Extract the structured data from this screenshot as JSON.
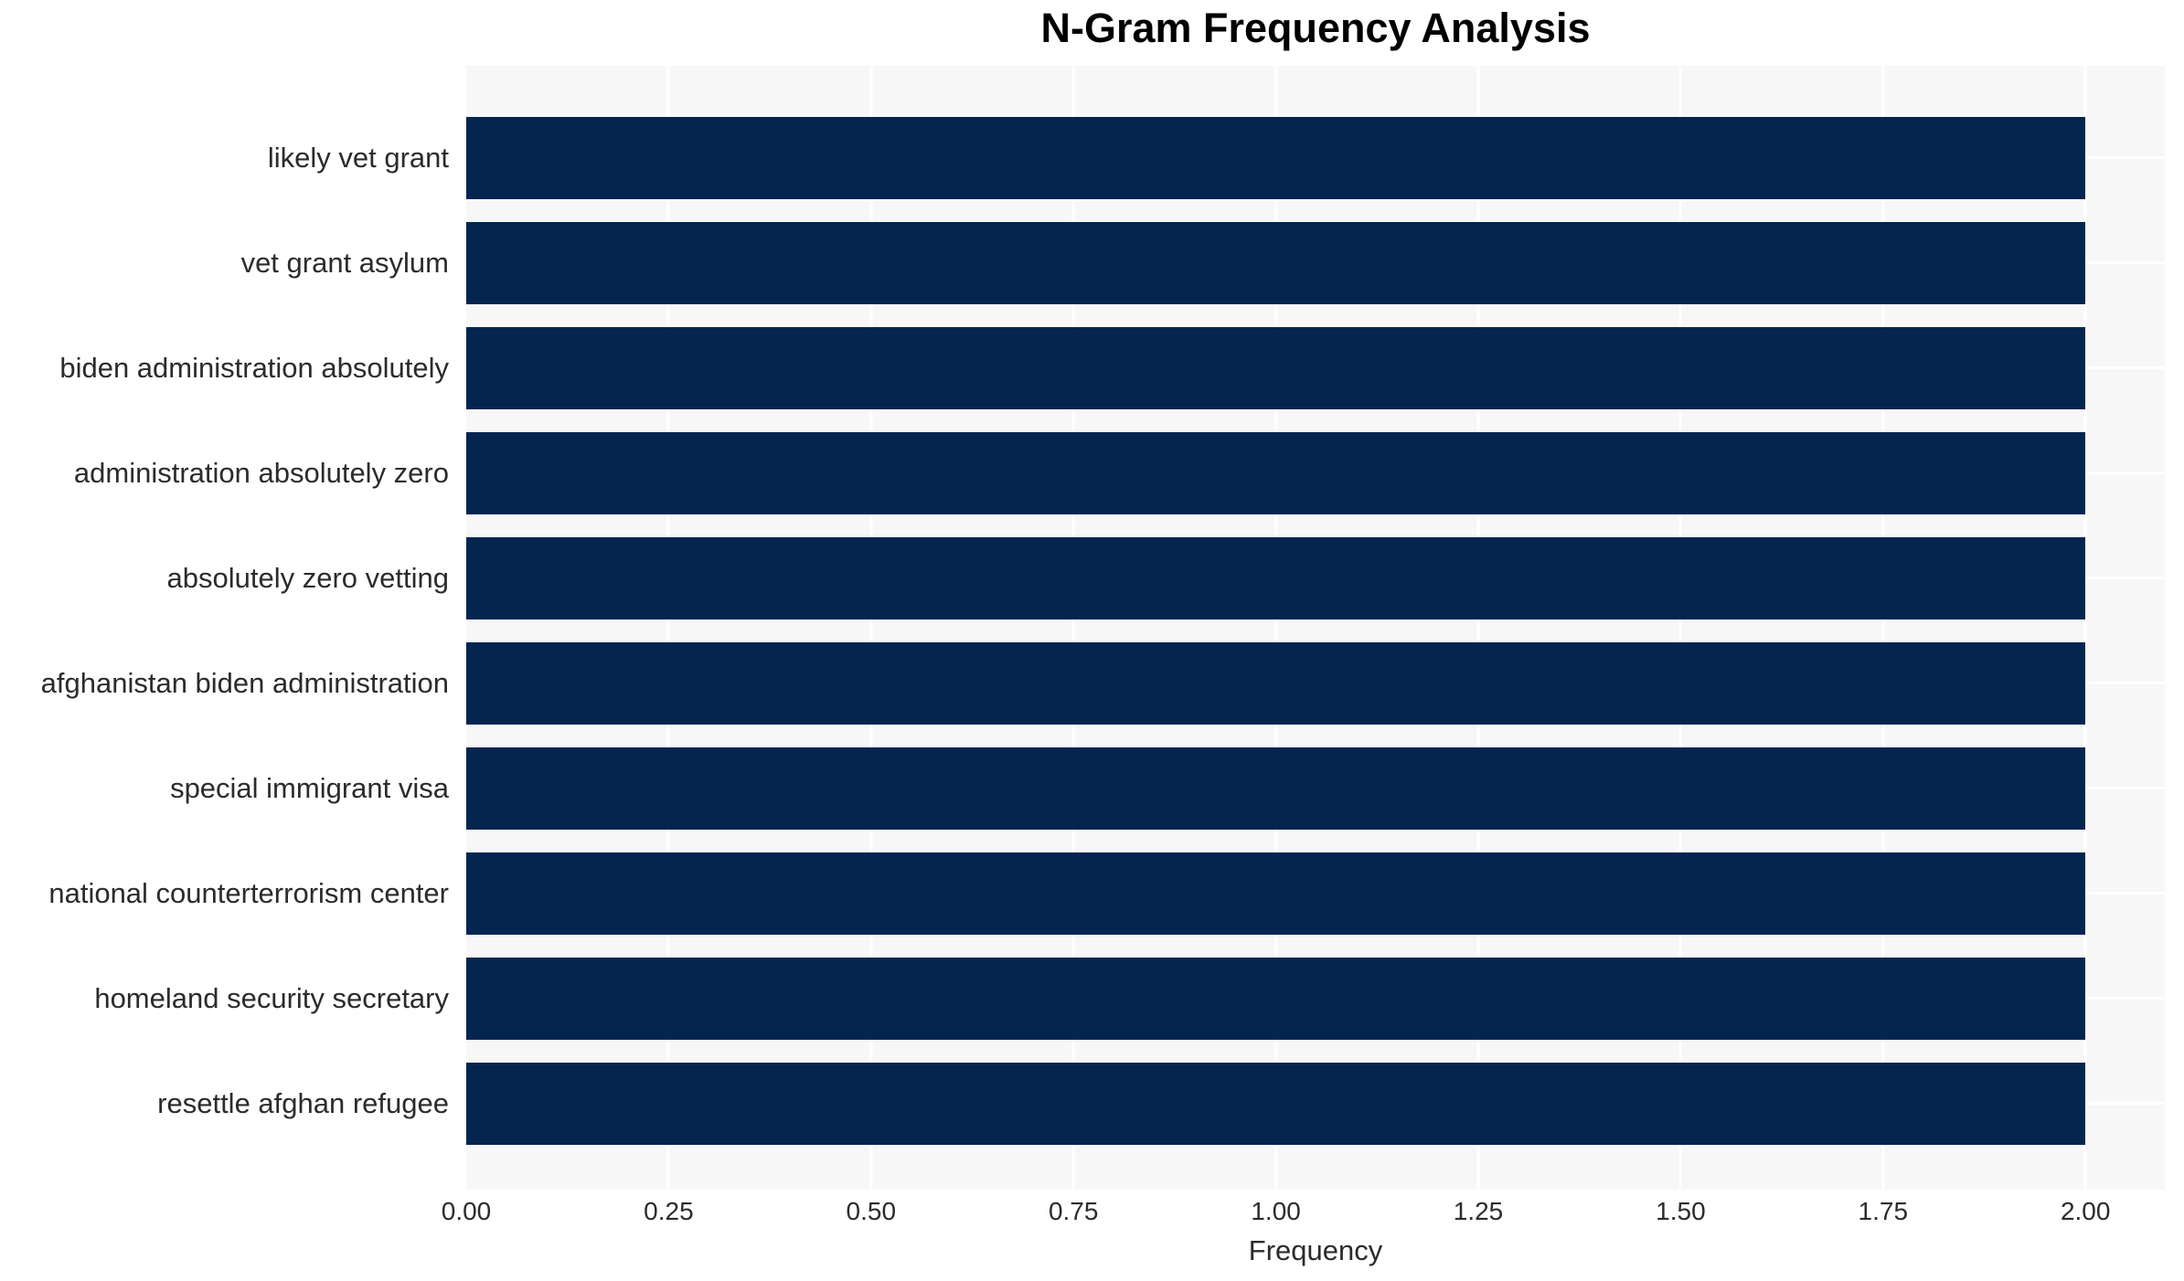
{
  "title": "N-Gram Frequency Analysis",
  "axes": {
    "xlabel": "Frequency",
    "x_ticks": [
      "0.00",
      "0.25",
      "0.50",
      "0.75",
      "1.00",
      "1.25",
      "1.50",
      "1.75",
      "2.00"
    ]
  },
  "colors": {
    "bar": "#032550",
    "plot_background": "#f7f7f7",
    "gridline": "#ffffff",
    "tick_text": "#2b2b2b",
    "title_text": "#000000"
  },
  "chart_data": {
    "type": "bar",
    "orientation": "horizontal",
    "title": "N-Gram Frequency Analysis",
    "xlabel": "Frequency",
    "ylabel": "",
    "categories": [
      "likely vet grant",
      "vet grant asylum",
      "biden administration absolutely",
      "administration absolutely zero",
      "absolutely zero vetting",
      "afghanistan biden administration",
      "special immigrant visa",
      "national counterterrorism center",
      "homeland security secretary",
      "resettle afghan refugee"
    ],
    "values": [
      2,
      2,
      2,
      2,
      2,
      2,
      2,
      2,
      2,
      2
    ],
    "xlim": [
      0,
      2.098
    ],
    "x_tick_values": [
      0,
      0.25,
      0.5,
      0.75,
      1.0,
      1.25,
      1.5,
      1.75,
      2.0
    ],
    "grid": true,
    "legend": false
  }
}
